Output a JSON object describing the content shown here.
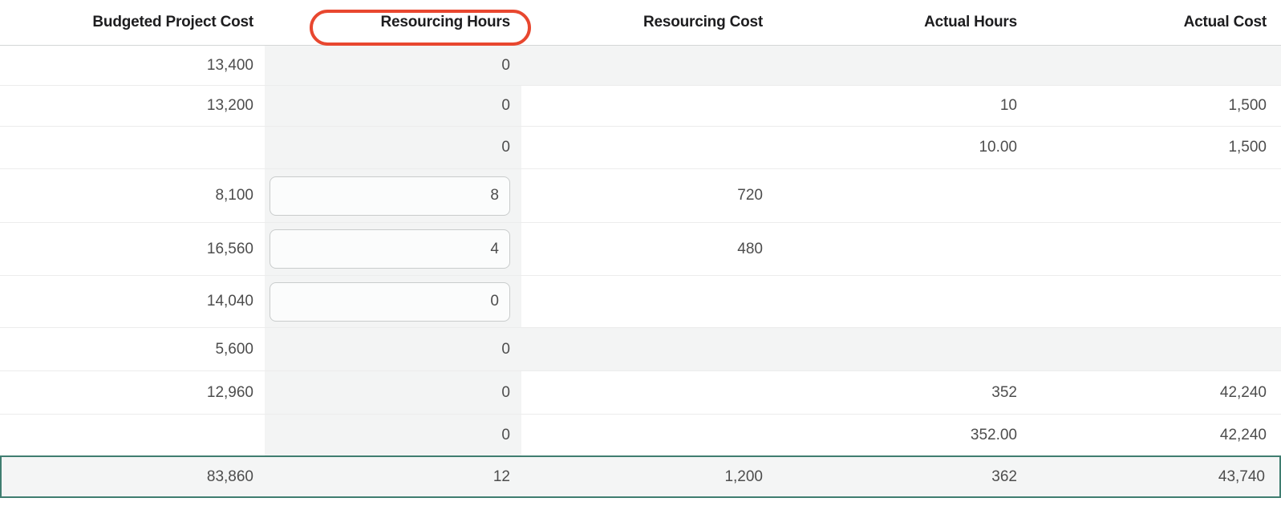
{
  "table": {
    "columns": [
      {
        "key": "budgeted_project_cost",
        "label": "Budgeted Project Cost"
      },
      {
        "key": "resourcing_hours",
        "label": "Resourcing Hours",
        "annotated": true,
        "shaded": true
      },
      {
        "key": "resourcing_cost",
        "label": "Resourcing Cost"
      },
      {
        "key": "actual_hours",
        "label": "Actual Hours"
      },
      {
        "key": "actual_cost",
        "label": "Actual Cost"
      }
    ],
    "rows": [
      {
        "type": "summary",
        "budgeted_project_cost": "13,400",
        "resourcing_hours": "0",
        "resourcing_cost": "",
        "actual_hours": "",
        "actual_cost": ""
      },
      {
        "type": "normal",
        "budgeted_project_cost": "13,200",
        "resourcing_hours": "0",
        "resourcing_cost": "",
        "actual_hours": "10",
        "actual_cost": "1,500"
      },
      {
        "type": "normal",
        "budgeted_project_cost": "",
        "resourcing_hours": "0",
        "resourcing_cost": "",
        "actual_hours": "10.00",
        "actual_cost": "1,500"
      },
      {
        "type": "input",
        "budgeted_project_cost": "8,100",
        "resourcing_hours": "8",
        "resourcing_cost": "720",
        "actual_hours": "",
        "actual_cost": ""
      },
      {
        "type": "input",
        "budgeted_project_cost": "16,560",
        "resourcing_hours": "4",
        "resourcing_cost": "480",
        "actual_hours": "",
        "actual_cost": ""
      },
      {
        "type": "input",
        "budgeted_project_cost": "14,040",
        "resourcing_hours": "0",
        "resourcing_cost": "",
        "actual_hours": "",
        "actual_cost": ""
      },
      {
        "type": "summary",
        "budgeted_project_cost": "5,600",
        "resourcing_hours": "0",
        "resourcing_cost": "",
        "actual_hours": "",
        "actual_cost": ""
      },
      {
        "type": "normal",
        "budgeted_project_cost": "12,960",
        "resourcing_hours": "0",
        "resourcing_cost": "",
        "actual_hours": "352",
        "actual_cost": "42,240"
      },
      {
        "type": "normal",
        "budgeted_project_cost": "",
        "resourcing_hours": "0",
        "resourcing_cost": "",
        "actual_hours": "352.00",
        "actual_cost": "42,240"
      }
    ],
    "totals": {
      "budgeted_project_cost": "83,860",
      "resourcing_hours": "12",
      "resourcing_cost": "1,200",
      "actual_hours": "362",
      "actual_cost": "43,740"
    }
  },
  "annotation": {
    "shape": "red-oval",
    "target_column": "Resourcing Hours",
    "color": "#e8472f"
  },
  "colors": {
    "header_text": "#1d1d1f",
    "value_text": "#4d4d4d",
    "shaded_column_bg": "#f3f4f4",
    "summary_row_bg": "#f3f4f4",
    "totals_row_bg": "#f4f5f5",
    "totals_border": "#3f7d70",
    "header_border": "#d4d6d6",
    "row_separator": "#ececec",
    "input_border": "#c9cccc",
    "input_bg": "#fbfcfc"
  }
}
